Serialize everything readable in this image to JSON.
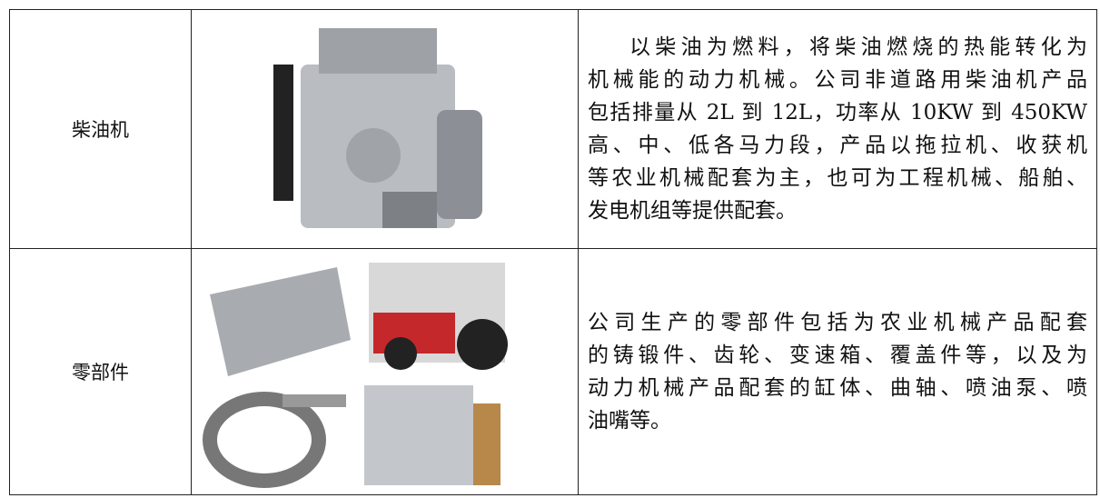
{
  "table": {
    "rows": [
      {
        "name": "柴油机",
        "description": [
          "以柴油为燃料，将柴油燃烧的热能转化为",
          "机械能的动力机械。公司非道路用柴油机产品",
          "包括排量从 2L 到 12L，功率从 10KW 到 450KW",
          "高、中、低各马力段，产品以拖拉机、收获机",
          "等农业机械配套为主，也可为工程机械、船舶、",
          "发电机组等提供配套。"
        ]
      },
      {
        "name": "零部件",
        "description": [
          "公司生产的零部件包括为农业机械产品配套",
          "的铸锻件、齿轮、变速箱、覆盖件等，以及为",
          "动力机械产品配套的缸体、曲轴、喷油泵、喷",
          "油嘴等。"
        ]
      }
    ]
  }
}
